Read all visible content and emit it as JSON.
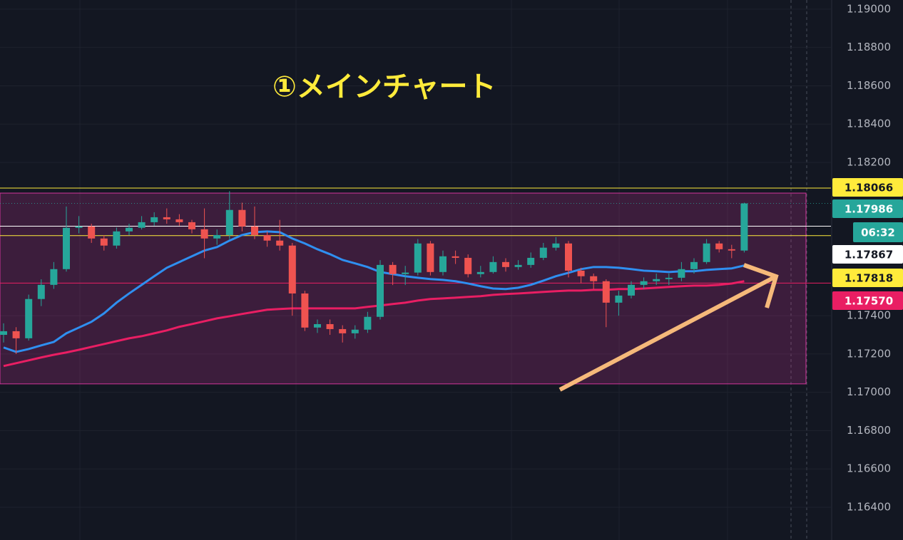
{
  "chart_data": {
    "type": "candlestick",
    "title": "①メインチャート",
    "ylim": [
      1.16229,
      1.19048
    ],
    "yticks": [
      {
        "value": 1.19,
        "label": "1.19000"
      },
      {
        "value": 1.188,
        "label": "1.18800"
      },
      {
        "value": 1.186,
        "label": "1.18600"
      },
      {
        "value": 1.184,
        "label": "1.18400"
      },
      {
        "value": 1.182,
        "label": "1.18200"
      },
      {
        "value": 1.174,
        "label": "1.17400"
      },
      {
        "value": 1.172,
        "label": "1.17200"
      },
      {
        "value": 1.17,
        "label": "1.17000"
      },
      {
        "value": 1.168,
        "label": "1.16800"
      },
      {
        "value": 1.166,
        "label": "1.16600"
      },
      {
        "value": 1.164,
        "label": "1.16400"
      }
    ],
    "grid": true,
    "up_color": "#26a69a",
    "down_color": "#ef5350",
    "open": [
      1.173,
      1.17319,
      1.17282,
      1.17487,
      1.17561,
      1.17643,
      1.17859,
      1.17866,
      1.17803,
      1.17766,
      1.1784,
      1.17859,
      1.17888,
      1.17914,
      1.17903,
      1.17888,
      1.17851,
      1.17803,
      1.17821,
      1.17952,
      1.17866,
      1.17821,
      1.17792,
      1.17766,
      1.17516,
      1.17338,
      1.17356,
      1.1733,
      1.17308,
      1.17327,
      1.17394,
      1.17665,
      1.17617,
      1.17625,
      1.17777,
      1.17628,
      1.1771,
      1.17702,
      1.17617,
      1.17628,
      1.1768,
      1.17654,
      1.17665,
      1.17702,
      1.17755,
      1.17777,
      1.17635,
      1.17606,
      1.1758,
      1.17468,
      1.17505,
      1.17561,
      1.1758,
      1.17591,
      1.17598,
      1.17643,
      1.1768,
      1.17777,
      1.17747,
      1.1774
    ],
    "high": [
      1.1736,
      1.1734,
      1.1751,
      1.1759,
      1.1768,
      1.1797,
      1.1792,
      1.1788,
      1.1782,
      1.1786,
      1.1788,
      1.1792,
      1.1794,
      1.1796,
      1.1793,
      1.179,
      1.1796,
      1.1785,
      1.1805,
      1.1799,
      1.1797,
      1.1784,
      1.179,
      1.1778,
      1.1753,
      1.1738,
      1.1738,
      1.1735,
      1.1735,
      1.1742,
      1.1769,
      1.1768,
      1.1766,
      1.178,
      1.1779,
      1.1774,
      1.1774,
      1.1772,
      1.1766,
      1.1771,
      1.177,
      1.1769,
      1.1773,
      1.1778,
      1.1781,
      1.1779,
      1.1765,
      1.1762,
      1.1759,
      1.1753,
      1.1758,
      1.176,
      1.1762,
      1.1762,
      1.1768,
      1.177,
      1.178,
      1.1779,
      1.1777,
      1.1799
    ],
    "low": [
      1.1726,
      1.172,
      1.1727,
      1.1745,
      1.1754,
      1.1763,
      1.1783,
      1.1778,
      1.1774,
      1.1775,
      1.1782,
      1.1785,
      1.1787,
      1.1788,
      1.1787,
      1.1783,
      1.177,
      1.1777,
      1.178,
      1.1784,
      1.178,
      1.1776,
      1.1774,
      1.174,
      1.1732,
      1.1731,
      1.173,
      1.1726,
      1.1728,
      1.1731,
      1.1738,
      1.1756,
      1.1756,
      1.1761,
      1.1761,
      1.1761,
      1.1767,
      1.176,
      1.176,
      1.1762,
      1.1763,
      1.1764,
      1.1765,
      1.1769,
      1.1774,
      1.176,
      1.1757,
      1.1754,
      1.1734,
      1.174,
      1.1749,
      1.1754,
      1.1756,
      1.1756,
      1.1758,
      1.1762,
      1.1767,
      1.1773,
      1.177,
      1.1773
    ],
    "close": [
      1.17319,
      1.17282,
      1.17487,
      1.17561,
      1.17643,
      1.17859,
      1.17866,
      1.17803,
      1.17766,
      1.1784,
      1.17859,
      1.17888,
      1.17914,
      1.17903,
      1.17888,
      1.17851,
      1.17803,
      1.17821,
      1.17952,
      1.17866,
      1.17821,
      1.17792,
      1.17766,
      1.17516,
      1.17338,
      1.17356,
      1.1733,
      1.17308,
      1.17327,
      1.17394,
      1.17665,
      1.17617,
      1.17625,
      1.17777,
      1.17628,
      1.1771,
      1.17702,
      1.17617,
      1.17628,
      1.1768,
      1.17654,
      1.17665,
      1.17702,
      1.17755,
      1.17777,
      1.17635,
      1.17606,
      1.1758,
      1.17468,
      1.17505,
      1.17561,
      1.1758,
      1.17591,
      1.17598,
      1.17643,
      1.1768,
      1.17777,
      1.17747,
      1.1774,
      1.17986
    ],
    "lines": [
      {
        "color": "#2f8ff0",
        "values": [
          1.17234,
          1.17211,
          1.17226,
          1.17245,
          1.17263,
          1.17308,
          1.17338,
          1.17368,
          1.17412,
          1.17468,
          1.17516,
          1.17561,
          1.17606,
          1.1765,
          1.1768,
          1.1771,
          1.1774,
          1.17758,
          1.17792,
          1.17821,
          1.17836,
          1.1784,
          1.17836,
          1.17803,
          1.17777,
          1.17747,
          1.17721,
          1.17691,
          1.17673,
          1.17654,
          1.17628,
          1.17617,
          1.17606,
          1.17598,
          1.17591,
          1.17587,
          1.1758,
          1.17568,
          1.17554,
          1.17542,
          1.17539,
          1.17546,
          1.17561,
          1.17583,
          1.17606,
          1.17624,
          1.17643,
          1.17654,
          1.17654,
          1.1765,
          1.17643,
          1.17635,
          1.17632,
          1.17628,
          1.17632,
          1.17632,
          1.17639,
          1.17643,
          1.17647,
          1.17662
        ]
      },
      {
        "color": "#e91e63",
        "values": [
          1.17137,
          1.17152,
          1.17167,
          1.17182,
          1.17196,
          1.17208,
          1.17222,
          1.17237,
          1.17252,
          1.17267,
          1.17282,
          1.17293,
          1.17308,
          1.17323,
          1.17342,
          1.17356,
          1.17371,
          1.17386,
          1.17397,
          1.17409,
          1.1742,
          1.17431,
          1.17435,
          1.17438,
          1.17438,
          1.17438,
          1.17438,
          1.17438,
          1.17438,
          1.17446,
          1.17453,
          1.17461,
          1.17468,
          1.17479,
          1.17487,
          1.1749,
          1.17494,
          1.17498,
          1.17502,
          1.17509,
          1.17513,
          1.17516,
          1.1752,
          1.17524,
          1.17528,
          1.17531,
          1.17531,
          1.17535,
          1.17535,
          1.17539,
          1.17539,
          1.17542,
          1.17546,
          1.1755,
          1.17554,
          1.17557,
          1.17557,
          1.17561,
          1.17568,
          1.1758
        ]
      }
    ],
    "zone": {
      "from": 1.17044,
      "to": 1.1804,
      "color": "#d2359b"
    },
    "price_lines": [
      {
        "value": 1.18066,
        "color": "#ffeb3b",
        "text_color": "#131722"
      },
      {
        "value": 1.17986,
        "color": "#26a69a",
        "text_color": "#ffffff",
        "dotted": true
      },
      {
        "value": 1.17867,
        "color": "#ffffff",
        "text_color": "#131722"
      },
      {
        "value": 1.17818,
        "color": "#ffeb3b",
        "text_color": "#131722"
      },
      {
        "value": 1.1757,
        "label": "1.17570",
        "color": "#e91e63",
        "text_color": "#ffffff"
      }
    ],
    "countdown": "06:32"
  }
}
